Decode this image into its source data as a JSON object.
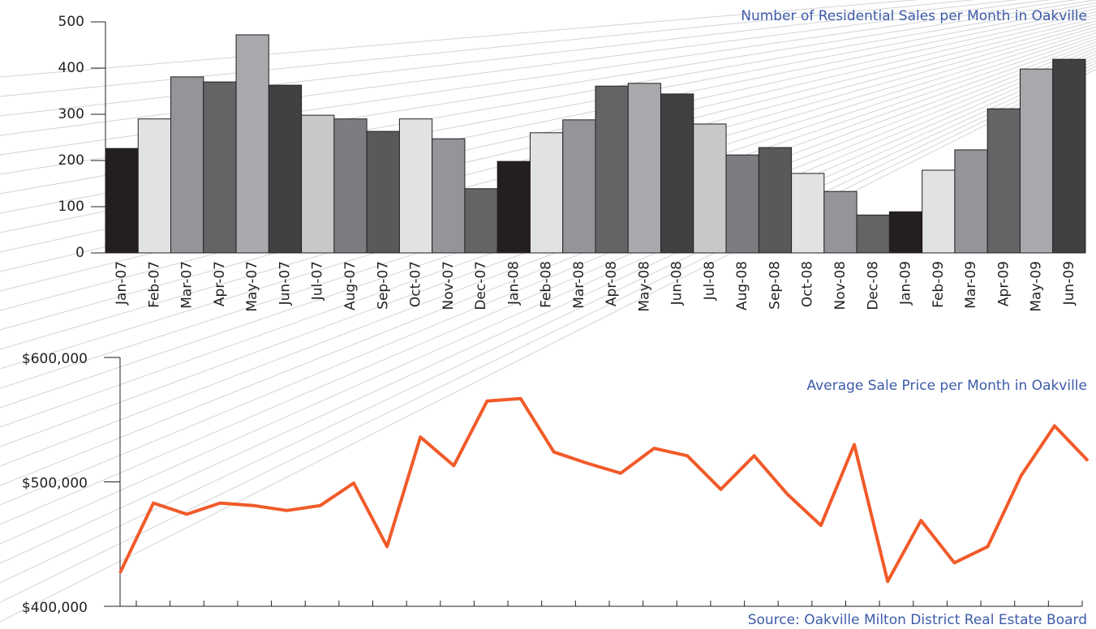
{
  "chart_data": [
    {
      "type": "bar",
      "title": "Number of Residential Sales per Month in Oakville",
      "categories": [
        "Jan-07",
        "Feb-07",
        "Mar-07",
        "Apr-07",
        "May-07",
        "Jun-07",
        "Jul-07",
        "Aug-07",
        "Sep-07",
        "Oct-07",
        "Nov-07",
        "Dec-07",
        "Jan-08",
        "Feb-08",
        "Mar-08",
        "Apr-08",
        "May-08",
        "Jun-08",
        "Jul-08",
        "Aug-08",
        "Sep-08",
        "Oct-08",
        "Nov-08",
        "Dec-08",
        "Jan-09",
        "Feb-09",
        "Mar-09",
        "Apr-09",
        "May-09",
        "Jun-09"
      ],
      "values": [
        226,
        290,
        381,
        370,
        472,
        363,
        298,
        290,
        263,
        290,
        247,
        139,
        198,
        260,
        288,
        361,
        367,
        344,
        279,
        212,
        228,
        172,
        133,
        82,
        89,
        179,
        223,
        312,
        398,
        419
      ],
      "colors": [
        "#231f20",
        "#e1e2e3",
        "#939598",
        "#636466",
        "#a7a9ac",
        "#414042",
        "#c7c8ca",
        "#7c7d80",
        "#58595b",
        "#e1e2e3",
        "#939598",
        "#636466"
      ],
      "ylim": [
        0,
        500
      ],
      "yticks": [
        0,
        100,
        200,
        300,
        400,
        500
      ]
    },
    {
      "type": "line",
      "title": "Average Sale Price per Month in Oakville",
      "source": "Source: Oakville Milton District Real Estate Board",
      "values": [
        427000,
        483000,
        474000,
        483000,
        481000,
        477000,
        481000,
        499000,
        448000,
        536000,
        513000,
        565000,
        567000,
        524000,
        515000,
        507000,
        527000,
        521000,
        494000,
        521000,
        490000,
        465000,
        530000,
        420000,
        469000,
        435000,
        448000,
        505000,
        545000,
        517000
      ],
      "color": "#f15a29",
      "ylim": [
        400000,
        600000
      ],
      "yticks": [
        {
          "value": 400000,
          "label": "$400,000"
        },
        {
          "value": 500000,
          "label": "$500,000"
        },
        {
          "value": 600000,
          "label": "$600,000"
        }
      ]
    }
  ]
}
